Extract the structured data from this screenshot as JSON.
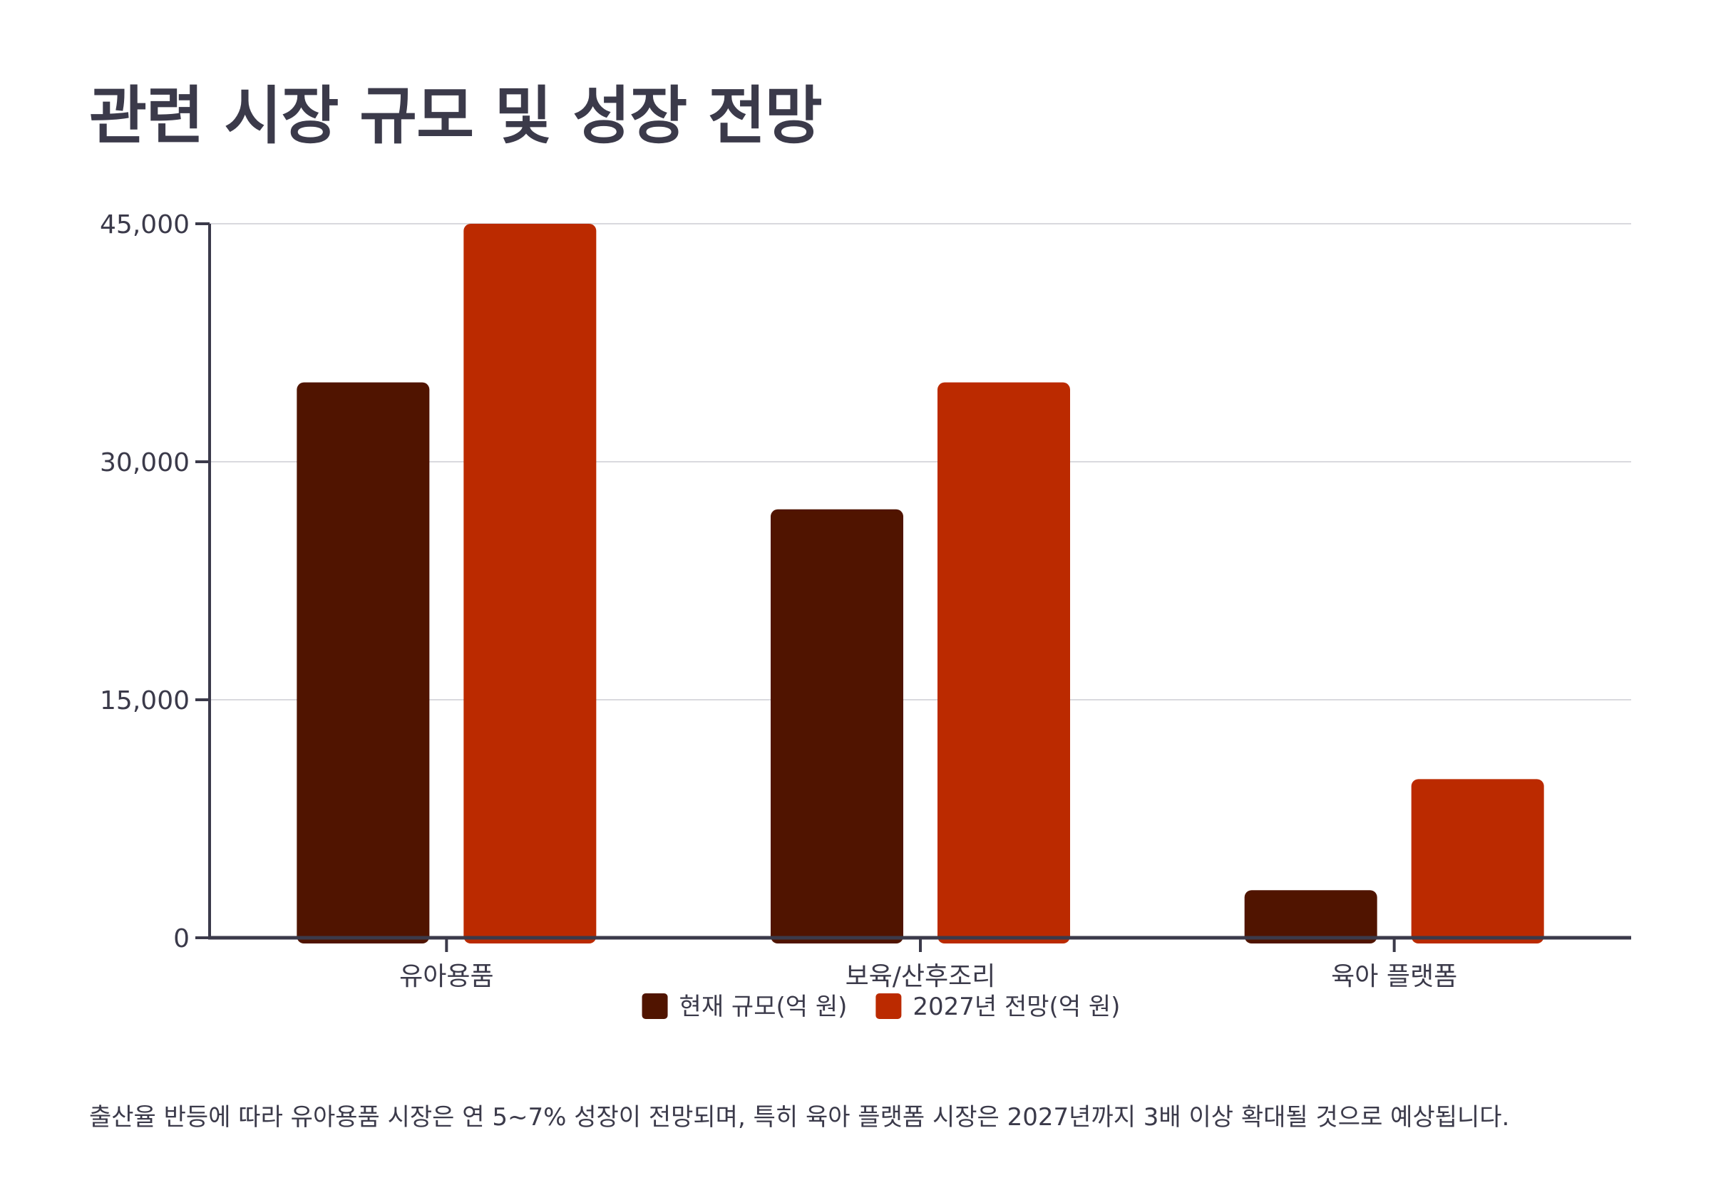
{
  "page": {
    "title": "관련 시장 규모 및 성장 전망",
    "caption": "출산율 반등에 따라 유아용품 시장은 연 5~7% 성장이 전망되며, 특히 육아 플랫폼 시장은 2027년까지 3배 이상 확대될 것으로 예상됩니다."
  },
  "chart_data": {
    "type": "bar",
    "title": "",
    "xlabel": "",
    "ylabel": "",
    "categories": [
      "유아용품",
      "보육/산후조리",
      "육아 플랫폼"
    ],
    "series": [
      {
        "name": "현재 규모(억 원)",
        "values": [
          35000,
          27000,
          3000
        ],
        "color": "#501400"
      },
      {
        "name": "2027년 전망(억 원)",
        "values": [
          45000,
          35000,
          10000
        ],
        "color": "#bb2a00"
      }
    ],
    "ylim": [
      0,
      45000
    ],
    "yticks": [
      0,
      15000,
      30000,
      45000
    ],
    "ytick_labels": [
      "0",
      "15,000",
      "30,000",
      "45,000"
    ],
    "grid": true,
    "legend": "bottom-center"
  }
}
